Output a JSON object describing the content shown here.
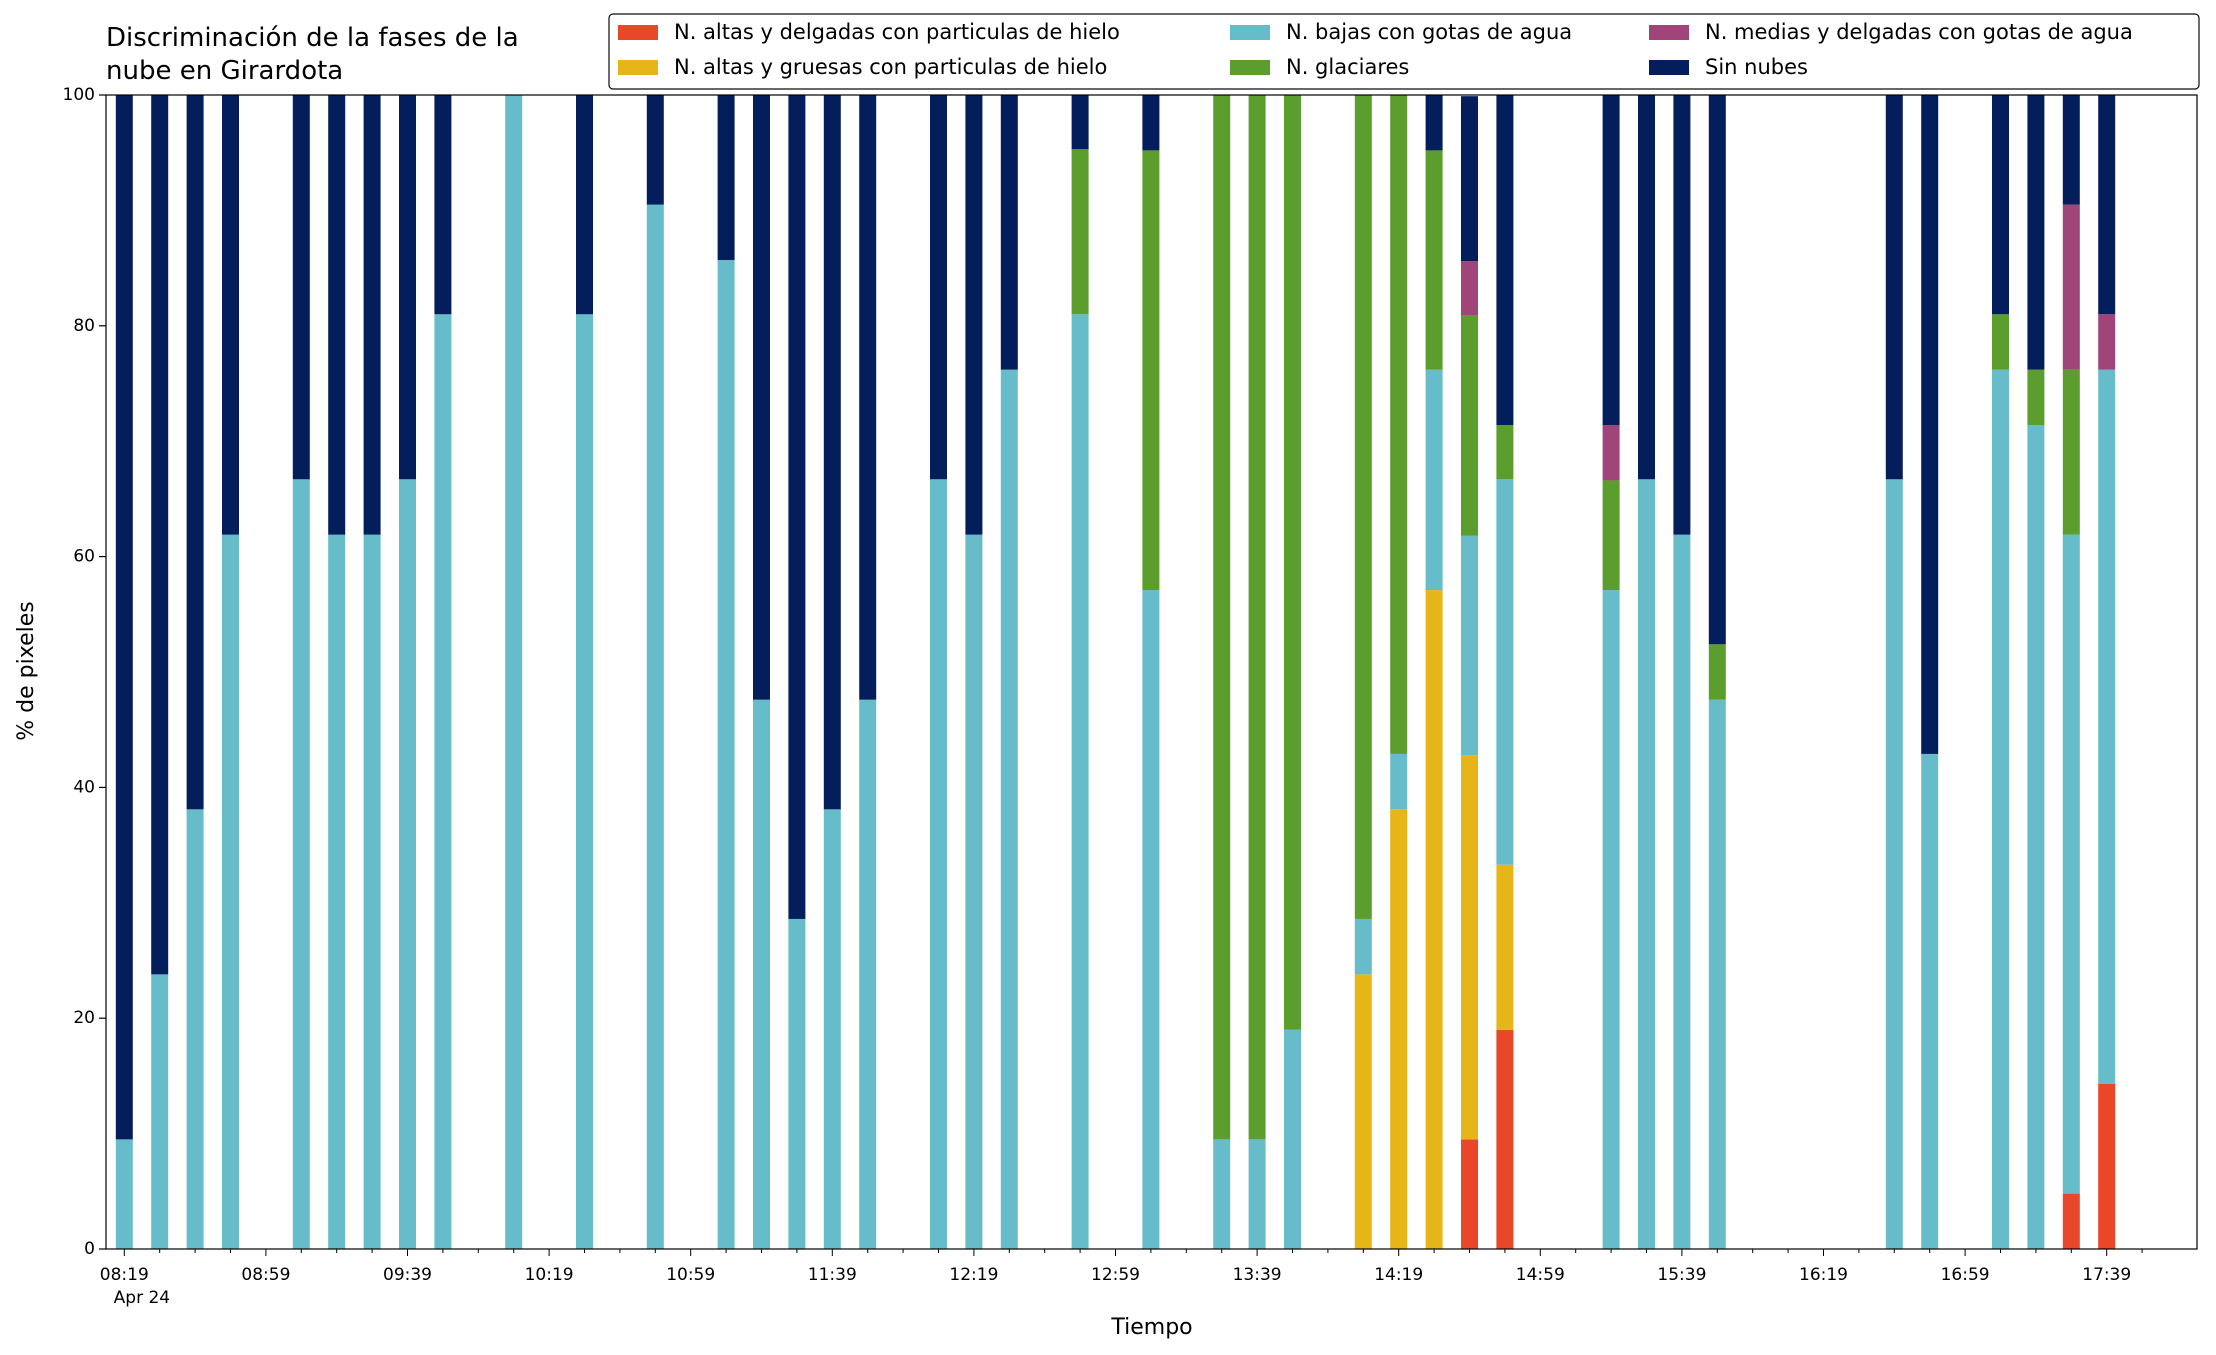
{
  "chart_data": {
    "type": "stacked_bar",
    "title": "Discriminación de la fases de la\nnube en Girardota",
    "x_label": "Tiempo",
    "y_label": "% de pixeles",
    "x_date_label": "Apr 24",
    "categories": [
      "08:19",
      null,
      null,
      null,
      "08:59",
      null,
      null,
      null,
      "09:39",
      null,
      null,
      null,
      "10:19",
      null,
      null,
      null,
      "10:59",
      null,
      null,
      null,
      "11:39",
      null,
      null,
      null,
      "12:19",
      null,
      null,
      null,
      "12:59",
      null,
      null,
      null,
      "13:39",
      null,
      null,
      null,
      "14:19",
      null,
      null,
      null,
      "14:59",
      null,
      null,
      null,
      "15:39",
      null,
      null,
      null,
      "16:19",
      null,
      null,
      null,
      "16:59",
      null,
      null,
      null,
      "17:39"
    ],
    "ylim": [
      0,
      100
    ],
    "yticks": [
      0,
      20,
      40,
      60,
      80,
      100
    ],
    "grid": false,
    "legend": "upper right",
    "series": [
      {
        "name": "N. altas y delgadas con particulas de hielo",
        "color": "#e8472a",
        "values": [
          0,
          0,
          0,
          0,
          0,
          0,
          0,
          0,
          0,
          0,
          0,
          0,
          0,
          0,
          0,
          0,
          0,
          0,
          0,
          0,
          0,
          0,
          0,
          0,
          0,
          0,
          0,
          0,
          0,
          0,
          0,
          0,
          0,
          0,
          0,
          0,
          0,
          0,
          9.5,
          19,
          0,
          0,
          0,
          0,
          0,
          0,
          0,
          0,
          0,
          0,
          0,
          0,
          0,
          0,
          0,
          4.8,
          14.3
        ]
      },
      {
        "name": "N. altas y gruesas con particulas de hielo",
        "color": "#e6b619",
        "values": [
          0,
          0,
          0,
          0,
          0,
          0,
          0,
          0,
          0,
          0,
          0,
          0,
          0,
          0,
          0,
          0,
          0,
          0,
          0,
          0,
          0,
          0,
          0,
          0,
          0,
          0,
          0,
          0,
          0,
          0,
          0,
          0,
          0,
          0,
          0,
          23.8,
          38.1,
          57.1,
          33.3,
          14.3,
          0,
          0,
          0,
          0,
          0,
          0,
          0,
          0,
          0,
          0,
          0,
          0,
          0,
          0,
          0,
          0,
          0
        ]
      },
      {
        "name": "N. bajas con gotas de agua",
        "color": "#66bdc9",
        "values": [
          9.5,
          23.8,
          38.1,
          61.9,
          0,
          66.7,
          61.9,
          61.9,
          66.7,
          81,
          0,
          100,
          0,
          81,
          0,
          90.5,
          0,
          85.7,
          47.6,
          28.6,
          38.1,
          47.6,
          0,
          66.7,
          61.9,
          76.2,
          0,
          81,
          0,
          57.1,
          0,
          9.5,
          9.5,
          19,
          0,
          4.8,
          4.8,
          19.1,
          19,
          33.4,
          0,
          0,
          57.1,
          66.7,
          61.9,
          47.6,
          0,
          0,
          0,
          0,
          66.7,
          42.9,
          0,
          76.2,
          71.4,
          57.1,
          61.9
        ]
      },
      {
        "name": "N. glaciares",
        "color": "#5c9e2e",
        "values": [
          0,
          0,
          0,
          0,
          0,
          0,
          0,
          0,
          0,
          0,
          0,
          0,
          0,
          0,
          0,
          0,
          0,
          0,
          0,
          0,
          0,
          0,
          0,
          0,
          0,
          0,
          0,
          14.3,
          0,
          38.1,
          0,
          90.5,
          90.5,
          81,
          0,
          71.4,
          57.1,
          19,
          19.1,
          4.7,
          0,
          0,
          9.5,
          0,
          0,
          4.8,
          0,
          0,
          0,
          0,
          0,
          0,
          0,
          4.8,
          4.8,
          14.3,
          0
        ]
      },
      {
        "name": "N. medias y delgadas con gotas de agua",
        "color": "#a0457a",
        "values": [
          0,
          0,
          0,
          0,
          0,
          0,
          0,
          0,
          0,
          0,
          0,
          0,
          0,
          0,
          0,
          0,
          0,
          0,
          0,
          0,
          0,
          0,
          0,
          0,
          0,
          0,
          0,
          0,
          0,
          0,
          0,
          0,
          0,
          0,
          0,
          0,
          0,
          0,
          4.7,
          0,
          0,
          0,
          4.8,
          0,
          0,
          0,
          0,
          0,
          0,
          0,
          0,
          0,
          0,
          0,
          0,
          14.3,
          4.8
        ]
      },
      {
        "name": "Sin nubes",
        "color": "#041e5c",
        "values": [
          90.5,
          76.2,
          61.9,
          38.1,
          0,
          33.3,
          38.1,
          38.1,
          33.3,
          19,
          0,
          0,
          0,
          19,
          0,
          9.5,
          0,
          14.3,
          52.4,
          71.4,
          61.9,
          52.4,
          0,
          33.3,
          38.1,
          23.8,
          0,
          4.7,
          0,
          4.8,
          0,
          0,
          0,
          0,
          0,
          0,
          0,
          4.8,
          14.3,
          28.6,
          0,
          0,
          28.6,
          33.3,
          38.1,
          47.6,
          0,
          0,
          0,
          0,
          33.3,
          57.1,
          0,
          19,
          23.8,
          9.5,
          19
        ]
      }
    ]
  }
}
